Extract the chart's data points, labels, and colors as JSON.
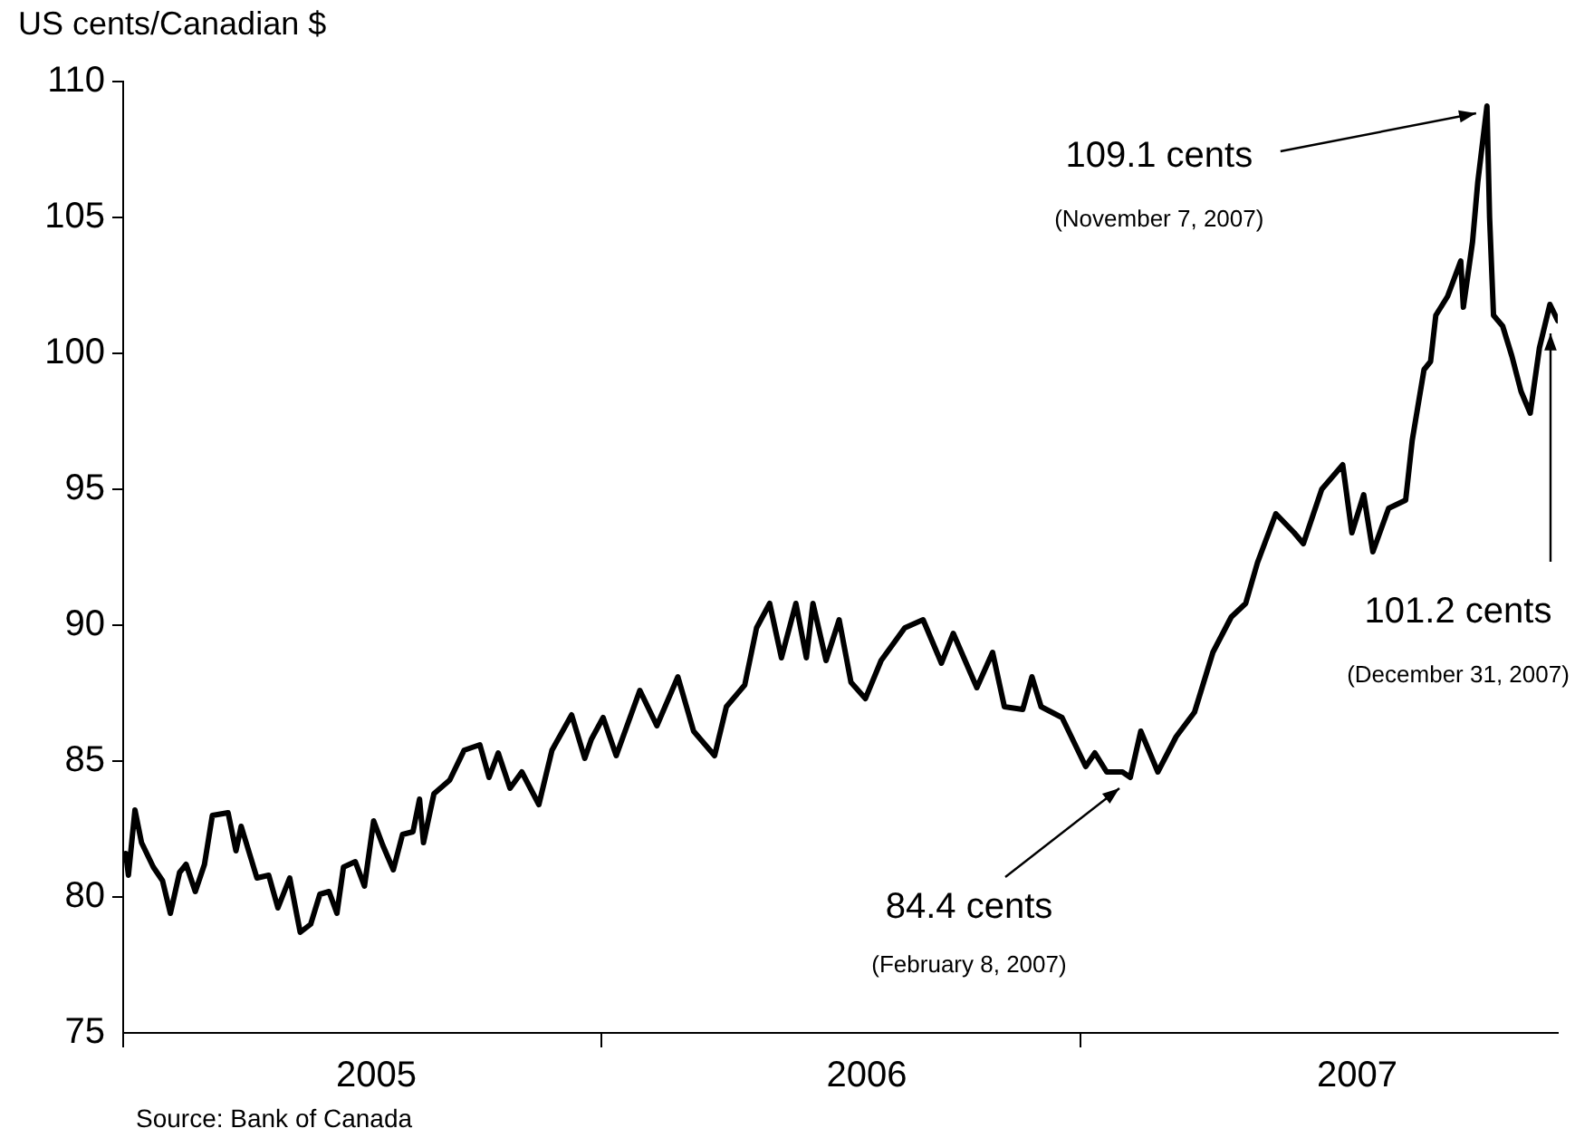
{
  "chart_data": {
    "type": "line",
    "ylabel": "US cents/Canadian $",
    "x": [
      "2005-01-03",
      "2005-01-05",
      "2005-01-10",
      "2005-01-15",
      "2005-01-24",
      "2005-01-31",
      "2005-02-06",
      "2005-02-13",
      "2005-02-18",
      "2005-02-25",
      "2005-03-04",
      "2005-03-10",
      "2005-03-22",
      "2005-03-28",
      "2005-04-01",
      "2005-04-13",
      "2005-04-22",
      "2005-04-29",
      "2005-05-08",
      "2005-05-16",
      "2005-05-24",
      "2005-05-31",
      "2005-06-07",
      "2005-06-13",
      "2005-06-18",
      "2005-06-27",
      "2005-07-04",
      "2005-07-11",
      "2005-07-18",
      "2005-07-26",
      "2005-08-02",
      "2005-08-10",
      "2005-08-15",
      "2005-08-18",
      "2005-08-26",
      "2005-09-07",
      "2005-09-18",
      "2005-09-30",
      "2005-10-07",
      "2005-10-14",
      "2005-10-23",
      "2005-11-01",
      "2005-11-14",
      "2005-11-24",
      "2005-12-09",
      "2005-12-19",
      "2005-12-24",
      "2006-01-02",
      "2006-01-12",
      "2006-01-30",
      "2006-02-12",
      "2006-02-28",
      "2006-03-12",
      "2006-03-28",
      "2006-04-06",
      "2006-04-20",
      "2006-04-29",
      "2006-05-09",
      "2006-05-18",
      "2006-05-29",
      "2006-06-06",
      "2006-06-11",
      "2006-06-21",
      "2006-07-01",
      "2006-07-10",
      "2006-07-21",
      "2006-08-02",
      "2006-08-20",
      "2006-09-03",
      "2006-09-17",
      "2006-09-26",
      "2006-10-14",
      "2006-10-26",
      "2006-11-04",
      "2006-11-18",
      "2006-11-25",
      "2006-12-02",
      "2006-12-18",
      "2007-01-05",
      "2007-01-12",
      "2007-01-21",
      "2007-02-02",
      "2007-02-08",
      "2007-02-16",
      "2007-03-01",
      "2007-03-15",
      "2007-03-29",
      "2007-04-12",
      "2007-04-26",
      "2007-05-07",
      "2007-05-16",
      "2007-05-30",
      "2007-06-13",
      "2007-06-20",
      "2007-07-04",
      "2007-07-20",
      "2007-07-27",
      "2007-08-05",
      "2007-08-12",
      "2007-08-24",
      "2007-09-06",
      "2007-09-11",
      "2007-09-20",
      "2007-09-25",
      "2007-09-29",
      "2007-10-08",
      "2007-10-18",
      "2007-10-20",
      "2007-10-27",
      "2007-10-31",
      "2007-11-07",
      "2007-11-09",
      "2007-11-12",
      "2007-11-19",
      "2007-11-26",
      "2007-12-03",
      "2007-12-10",
      "2007-12-17",
      "2007-12-25",
      "2007-12-31"
    ],
    "series": [
      {
        "color": "#000000",
        "values": [
          81.6,
          80.8,
          83.2,
          82.0,
          81.1,
          80.6,
          79.4,
          80.9,
          81.2,
          80.2,
          81.2,
          83.0,
          83.1,
          81.7,
          82.6,
          80.7,
          80.8,
          79.6,
          80.7,
          78.7,
          79.0,
          80.1,
          80.2,
          79.4,
          81.1,
          81.3,
          80.4,
          82.8,
          81.9,
          81.0,
          82.3,
          82.4,
          83.6,
          82.0,
          83.8,
          84.3,
          85.4,
          85.6,
          84.4,
          85.3,
          84.0,
          84.6,
          83.4,
          85.4,
          86.7,
          85.1,
          85.8,
          86.6,
          85.2,
          87.6,
          86.3,
          88.1,
          86.1,
          85.2,
          87.0,
          87.8,
          89.9,
          90.8,
          88.8,
          90.8,
          88.8,
          90.8,
          88.7,
          90.2,
          87.9,
          87.3,
          88.7,
          89.9,
          90.2,
          88.6,
          89.7,
          87.7,
          89.0,
          87.0,
          86.9,
          88.1,
          87.0,
          86.6,
          84.8,
          85.3,
          84.6,
          84.6,
          84.4,
          86.1,
          84.6,
          85.9,
          86.8,
          89.0,
          90.3,
          90.8,
          92.3,
          94.1,
          93.4,
          93.0,
          95.0,
          95.9,
          93.4,
          94.8,
          92.7,
          94.3,
          94.6,
          96.8,
          99.4,
          99.7,
          101.4,
          102.1,
          103.4,
          101.7,
          104.1,
          106.3,
          109.1,
          105.0,
          101.4,
          101.0,
          99.9,
          98.6,
          97.8,
          100.2,
          101.8,
          101.2
        ]
      }
    ],
    "xlim": [
      "2005-01-01",
      "2007-12-31"
    ],
    "xticks": [
      {
        "value": "2005-01-01",
        "label": null
      },
      {
        "value": "2005-07-13",
        "label": "2005"
      },
      {
        "value": "2006-01-01",
        "label": null
      },
      {
        "value": "2006-07-22",
        "label": "2006"
      },
      {
        "value": "2007-01-01",
        "label": null
      },
      {
        "value": "2007-07-31",
        "label": "2007"
      }
    ],
    "ylim": [
      75,
      110
    ],
    "yticks": [
      75,
      80,
      85,
      90,
      95,
      100,
      105,
      110
    ],
    "grid": false,
    "legend": false,
    "marker": "none",
    "line_style": "solid",
    "annotations": [
      {
        "text": "109.1 cents",
        "x": "2007-11-07",
        "y": 109.1
      },
      {
        "text": "101.2 cents",
        "x": "2007-12-31",
        "y": 101.2
      },
      {
        "text": "84.4 cents",
        "x": "2007-02-08",
        "y": 84.4
      },
      "(November 7, 2007)",
      "(December 31, 2007)",
      "(February 8, 2007)",
      "Source: Bank of Canada"
    ]
  }
}
